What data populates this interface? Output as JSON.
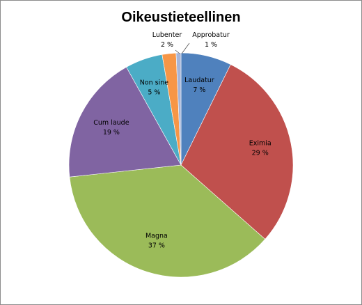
{
  "chart_data": {
    "type": "pie",
    "title": "Oikeustieteellinen",
    "slices": [
      {
        "name": "Laudatur",
        "label": "Laudatur",
        "value_label": "7 %",
        "value": 7.3,
        "color": "#4F81BD"
      },
      {
        "name": "Eximia",
        "label": "Eximia",
        "value_label": "29 %",
        "value": 29.2,
        "color": "#C0504D"
      },
      {
        "name": "Magna",
        "label": "Magna",
        "value_label": "37 %",
        "value": 36.8,
        "color": "#9BBB59"
      },
      {
        "name": "Cum laude",
        "label": "Cum laude",
        "value_label": "19 %",
        "value": 18.6,
        "color": "#8064A2"
      },
      {
        "name": "Non sine",
        "label": "Non sine",
        "value_label": "5 %",
        "value": 5.4,
        "color": "#4BACC6"
      },
      {
        "name": "Lubenter",
        "label": "Lubenter",
        "value_label": "2 %",
        "value": 2.0,
        "color": "#F79646"
      },
      {
        "name": "Approbatur",
        "label": "Approbatur",
        "value_label": "1 %",
        "value": 0.7,
        "color": "#A6B5D8"
      }
    ],
    "legend": "none",
    "data_labels": "category and percentage"
  }
}
